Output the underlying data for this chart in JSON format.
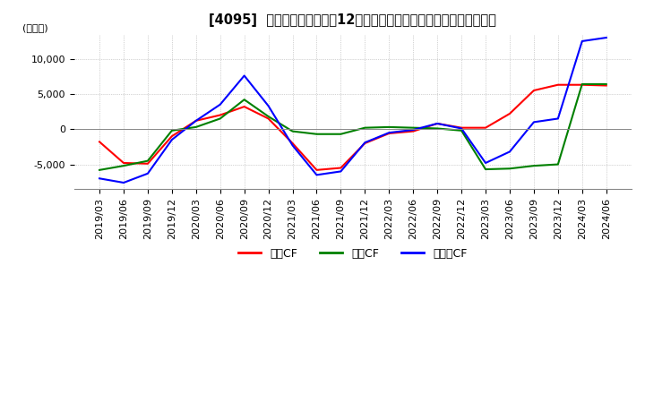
{
  "title": "[4095]  キャッシュフローの12か月移動合計の対前年同期増減額の推移",
  "ylabel": "(百万円)",
  "ylim": [
    -8500,
    13500
  ],
  "yticks": [
    -5000,
    0,
    5000,
    10000
  ],
  "legend_labels": [
    "営業CF",
    "投資CF",
    "フリーCF"
  ],
  "line_colors": [
    "#ff0000",
    "#008000",
    "#0000ff"
  ],
  "dates": [
    "2019/03",
    "2019/06",
    "2019/09",
    "2019/12",
    "2020/03",
    "2020/06",
    "2020/09",
    "2020/12",
    "2021/03",
    "2021/06",
    "2021/09",
    "2021/12",
    "2022/03",
    "2022/06",
    "2022/09",
    "2022/12",
    "2023/03",
    "2023/06",
    "2023/09",
    "2023/12",
    "2024/03",
    "2024/06"
  ],
  "operating_cf": [
    -1800,
    -4800,
    -4900,
    -1000,
    1200,
    2000,
    3200,
    1500,
    -2000,
    -5800,
    -5500,
    -2000,
    -600,
    -300,
    800,
    200,
    200,
    2200,
    5500,
    6300,
    6300,
    6200
  ],
  "investing_cf": [
    -5800,
    -5200,
    -4500,
    -200,
    300,
    1500,
    4200,
    1800,
    -300,
    -700,
    -700,
    200,
    300,
    200,
    100,
    -200,
    -5700,
    -5600,
    -5200,
    -5000,
    6400,
    6400
  ],
  "free_cf": [
    -7000,
    -7600,
    -6300,
    -1500,
    1200,
    3500,
    7600,
    3300,
    -2300,
    -6500,
    -6000,
    -1900,
    -500,
    -100,
    800,
    100,
    -4800,
    -3200,
    1000,
    1500,
    12500,
    13000
  ],
  "background_color": "#ffffff",
  "grid_color": "#aaaaaa",
  "title_fontsize": 10.5,
  "tick_fontsize": 8,
  "legend_fontsize": 9
}
